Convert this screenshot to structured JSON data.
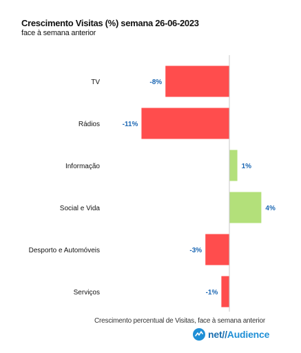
{
  "title": "Crescimento Visitas (%) semana 26-06-2023",
  "subtitle": "face à semana anterior",
  "footnote": "Crescimento percentual de Visitas, face à semana anterior",
  "brand": {
    "prefix": "net//",
    "name": "Audience",
    "icon": "netaudience-logo-icon"
  },
  "colors": {
    "negative": "#ff4d4d",
    "positive": "#b3e07a",
    "label": "#1a66b3",
    "axis": "#c8c8c8"
  },
  "chart_data": {
    "type": "bar",
    "orientation": "horizontal",
    "categories": [
      "TV",
      "Rádios",
      "Informação",
      "Social e Vida",
      "Desporto e Automóveis",
      "Serviços"
    ],
    "values": [
      -8,
      -11,
      1,
      4,
      -3,
      -1
    ],
    "value_labels": [
      "-8%",
      "-11%",
      "1%",
      "4%",
      "-3%",
      "-1%"
    ],
    "xlim": [
      -11,
      4
    ],
    "grid": false,
    "legend": "none"
  }
}
